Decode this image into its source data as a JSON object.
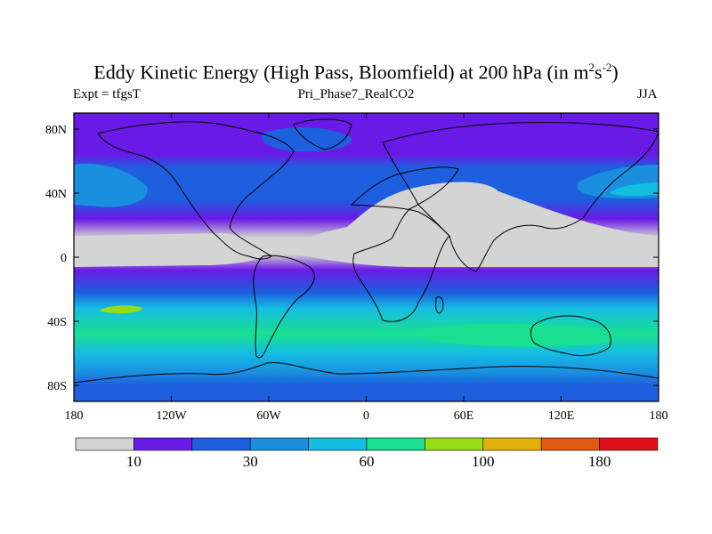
{
  "title": {
    "main": "Eddy Kinetic Energy (High Pass, Bloomfield) at 200 hPa (in m",
    "sup1": "2",
    "mid": "s",
    "sup2": "-2",
    "end": ")"
  },
  "left_label": "Expt = tfgsT",
  "center_label": "Pri_Phase7_RealCO2",
  "right_label": "JJA",
  "chart_data": {
    "type": "heatmap",
    "lat_ticks": [
      "80N",
      "40N",
      "0",
      "40S",
      "80S"
    ],
    "lon_ticks": [
      "180",
      "120W",
      "60W",
      "0",
      "60E",
      "120E",
      "180"
    ],
    "colorbar": {
      "colors": [
        "#d4d4d4",
        "#6a1ae6",
        "#1d5fde",
        "#1a8fe0",
        "#14bde2",
        "#18e090",
        "#96dc17",
        "#e3b00a",
        "#e05a10",
        "#e0101a"
      ],
      "labels": [
        "10",
        "30",
        "60",
        "100",
        "180"
      ]
    },
    "bands": [
      {
        "lat": 90,
        "level": 1
      },
      {
        "lat": 64,
        "level": 1
      },
      {
        "lat": 56,
        "level": 2
      },
      {
        "lat": 36,
        "level": 2
      },
      {
        "lat": 24,
        "level": 1
      },
      {
        "lat": 12,
        "level": 0
      },
      {
        "lat": 2,
        "level": 0
      },
      {
        "lat": -8,
        "level": 1
      },
      {
        "lat": -22,
        "level": 2
      },
      {
        "lat": -32,
        "level": 4
      },
      {
        "lat": -48,
        "level": 5
      },
      {
        "lat": -60,
        "level": 4
      },
      {
        "lat": -72,
        "level": 3
      },
      {
        "lat": -80,
        "level": 2
      },
      {
        "lat": -90,
        "level": 2
      }
    ]
  }
}
